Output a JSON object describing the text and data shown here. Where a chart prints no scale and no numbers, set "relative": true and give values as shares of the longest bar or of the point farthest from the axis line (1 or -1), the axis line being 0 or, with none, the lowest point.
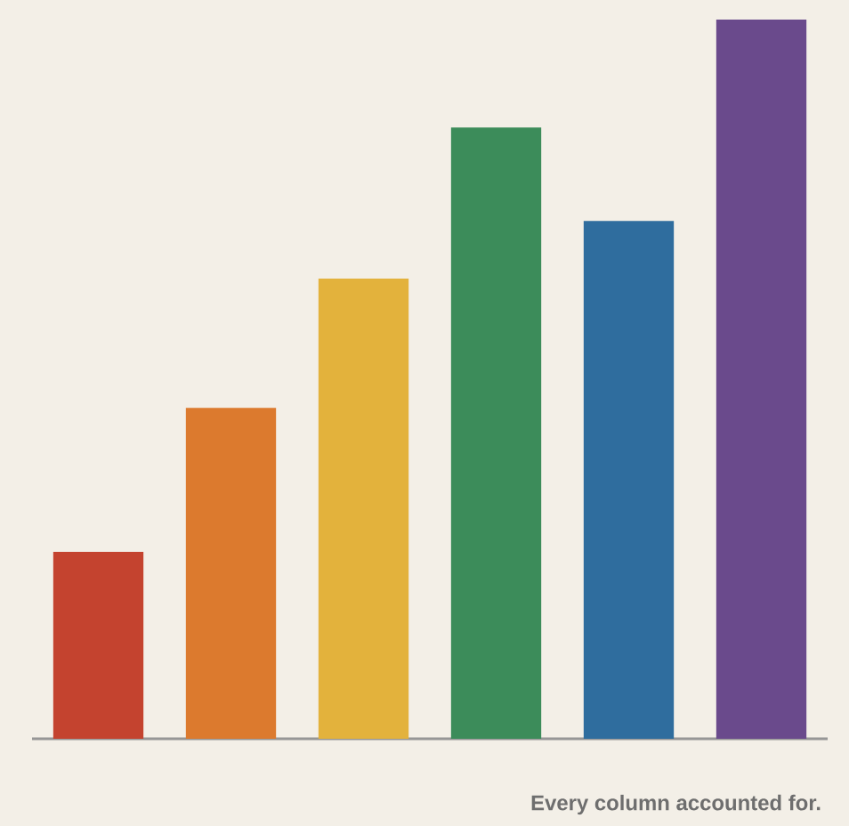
{
  "chart_data": {
    "type": "bar",
    "relative": true,
    "categories": [
      null,
      null,
      null,
      null,
      null,
      null
    ],
    "values": [
      0.26,
      0.46,
      0.64,
      0.85,
      0.72,
      1
    ],
    "colors": [
      "#c4432f",
      "#dc7a2e",
      "#e3b23c",
      "#3c8c5a",
      "#2f6d9e",
      "#6a4a8c"
    ],
    "annotations": [
      "Every column accounted for."
    ]
  }
}
